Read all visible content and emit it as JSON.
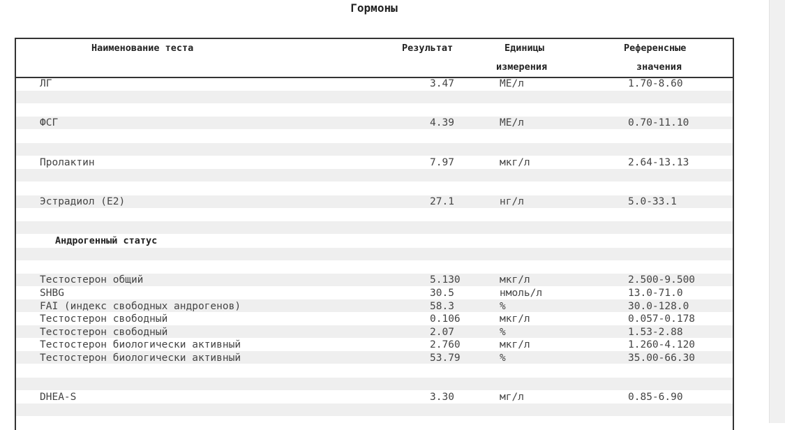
{
  "title": "Гормоны",
  "headers": {
    "name": "Наименование теста",
    "result": "Результат",
    "units_line1": "Единицы",
    "units_line2": "измерения",
    "ref_line1": "Референсные",
    "ref_line2": "значения"
  },
  "section_androgen": "Андрогенный статус",
  "rows": [
    {
      "name": "ЛГ",
      "result": "3.47",
      "unit": "МЕ/л",
      "ref": "1.70-8.60"
    },
    {
      "name": "ФСГ",
      "result": "4.39",
      "unit": "МЕ/л",
      "ref": "0.70-11.10"
    },
    {
      "name": "Пролактин",
      "result": "7.97",
      "unit": "мкг/л",
      "ref": "2.64-13.13"
    },
    {
      "name": "Эстрадиол (Е2)",
      "result": "27.1",
      "unit": "нг/л",
      "ref": "5.0-33.1"
    },
    {
      "name": "Тестостерон общий",
      "result": "5.130",
      "unit": "мкг/л",
      "ref": "2.500-9.500"
    },
    {
      "name": "SHBG",
      "result": "30.5",
      "unit": "нмоль/л",
      "ref": "13.0-71.0"
    },
    {
      "name": "FAI (индекс свободных андрогенов)",
      "result": "58.3",
      "unit": "%",
      "ref": "30.0-128.0"
    },
    {
      "name": "Тестостерон свободный",
      "result": "0.106",
      "unit": "мкг/л",
      "ref": "0.057-0.178"
    },
    {
      "name": "Тестостерон свободный",
      "result": "2.07",
      "unit": "%",
      "ref": "1.53-2.88"
    },
    {
      "name": "Тестостерон биологически активный",
      "result": "2.760",
      "unit": "мкг/л",
      "ref": "1.260-4.120"
    },
    {
      "name": "Тестостерон биологически активный",
      "result": "53.79",
      "unit": "%",
      "ref": "35.00-66.30"
    },
    {
      "name": "DHEA-S",
      "result": "3.30",
      "unit": "мг/л",
      "ref": "0.85-6.90"
    }
  ]
}
